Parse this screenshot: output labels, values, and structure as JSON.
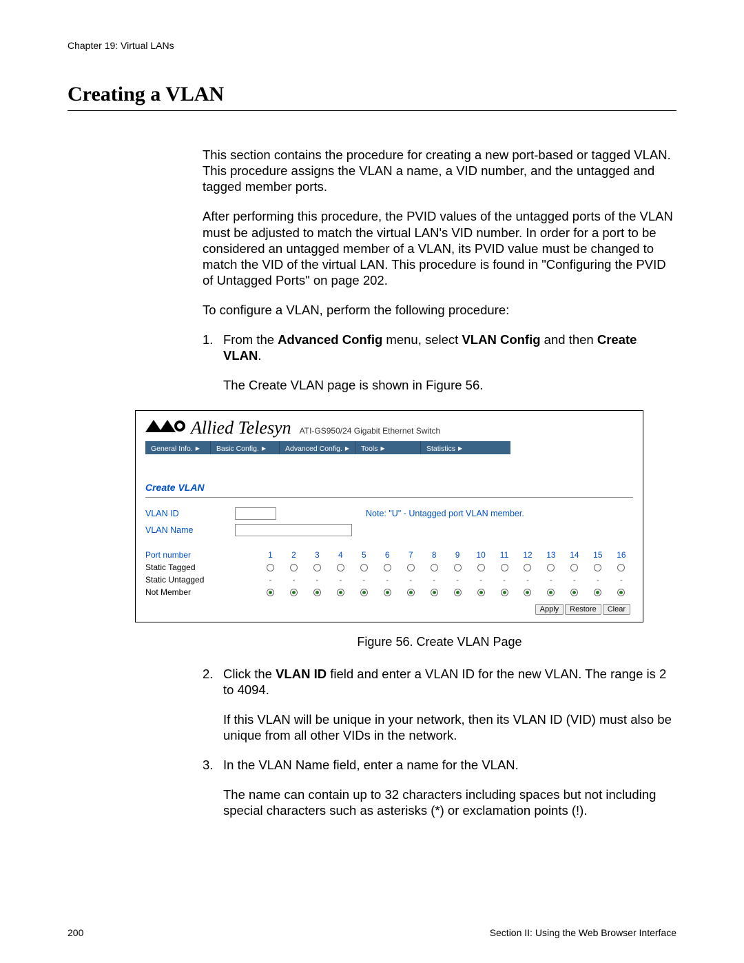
{
  "chapter": "Chapter 19: Virtual LANs",
  "title": "Creating a VLAN",
  "para1": "This section contains the procedure for creating a new port-based or tagged VLAN. This procedure assigns the VLAN a name, a VID number, and the untagged and tagged member ports.",
  "para2": "After performing this procedure, the PVID values of the untagged ports of the VLAN must be adjusted to match the virtual LAN's VID number. In order for a port to be considered an untagged member of a VLAN, its PVID value must be changed to match the VID of the virtual LAN. This procedure is found in \"Configuring the PVID of Untagged Ports\" on page 202.",
  "para3": "To configure a VLAN, perform the following procedure:",
  "step1_pre": "From the ",
  "step1_b1": "Advanced Config",
  "step1_mid": " menu, select ",
  "step1_b2": "VLAN Config",
  "step1_post": " and then ",
  "step1_b3": "Create VLAN",
  "step1_end": ".",
  "step1_sub": "The Create VLAN page is shown in Figure 56.",
  "figure_caption": "Figure 56. Create VLAN Page",
  "step2_pre": "Click the ",
  "step2_b1": "VLAN ID",
  "step2_post": " field and enter a VLAN ID for the new VLAN. The range is 2 to 4094.",
  "step2_sub": "If this VLAN will be unique in your network, then its VLAN ID (VID) must also be unique from all other VIDs in the network.",
  "step3": "In the VLAN Name field, enter a name for the VLAN.",
  "step3_sub": "The name can contain up to 32 characters including spaces but not including special characters such as asterisks (*) or exclamation points (!).",
  "footer_page": "200",
  "footer_section": "Section II: Using the Web Browser Interface",
  "screenshot": {
    "brand": "Allied Telesyn",
    "model": "ATI-GS950/24 Gigabit Ethernet Switch",
    "menu": [
      "General Info.",
      "Basic Config.",
      "Advanced Config.",
      "Tools",
      "Statistics"
    ],
    "menu_widths": [
      95,
      100,
      110,
      95,
      120
    ],
    "menubar_bg": "#3a6487",
    "section_title": "Create VLAN",
    "vlan_id_label": "VLAN ID",
    "vlan_name_label": "VLAN Name",
    "note": "Note: \"U\" - Untagged port VLAN member.",
    "port_label": "Port number",
    "row_tagged": "Static Tagged",
    "row_untagged": "Static Untagged",
    "row_notmember": "Not Member",
    "ports": [
      1,
      2,
      3,
      4,
      5,
      6,
      7,
      8,
      9,
      10,
      11,
      12,
      13,
      14,
      15,
      16
    ],
    "buttons": [
      "Apply",
      "Restore",
      "Clear"
    ],
    "link_color": "#0050c8",
    "radio_selected_color": "#2a7a2a"
  }
}
